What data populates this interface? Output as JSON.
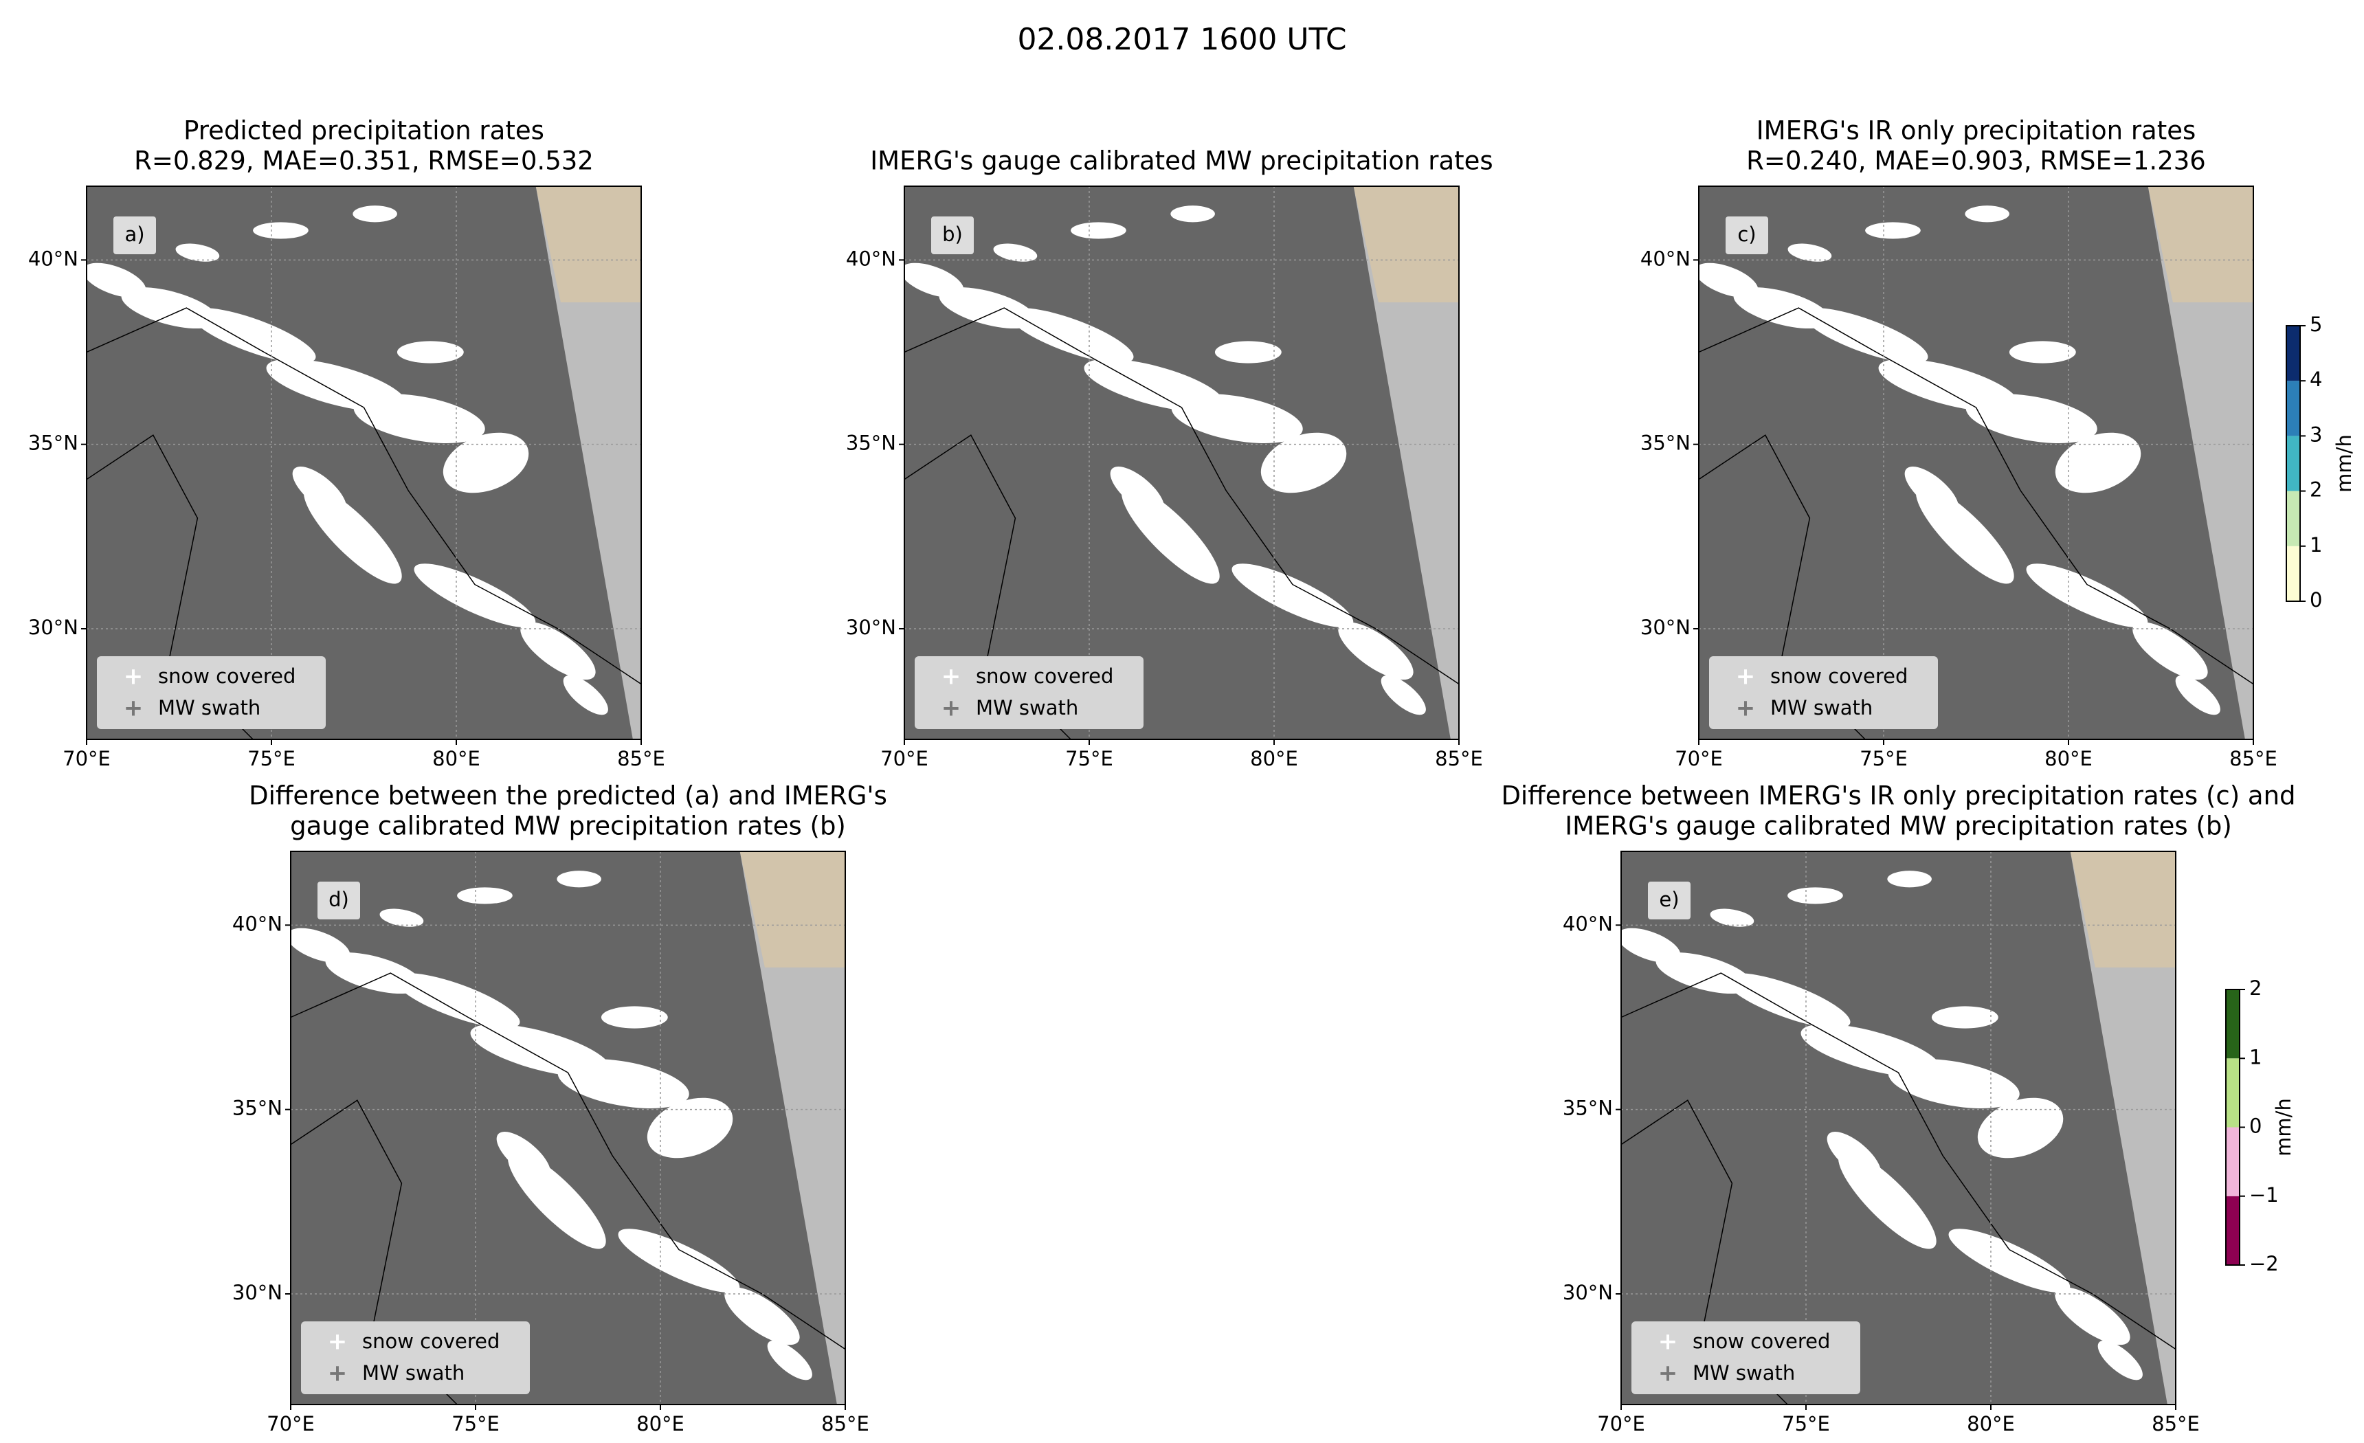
{
  "title": "02.08.2017 1600 UTC",
  "panels": [
    {
      "title": [
        "Predicted precipitation rates",
        "R=0.829, MAE=0.351, RMSE=0.532"
      ],
      "label": "a)"
    },
    {
      "title": [
        "IMERG's gauge calibrated MW precipitation rates"
      ],
      "label": "b)"
    },
    {
      "title": [
        "IMERG's IR only precipitation rates",
        "R=0.240, MAE=0.903, RMSE=1.236"
      ],
      "label": "c)"
    },
    {
      "title": [
        "Difference between the predicted (a) and IMERG's",
        "gauge calibrated MW precipitation rates (b)"
      ],
      "label": "d)"
    },
    {
      "title": [
        "Difference between IMERG's IR only precipitation rates (c) and",
        "IMERG's gauge calibrated MW precipitation rates (b)"
      ],
      "label": "e)"
    }
  ],
  "xlim": [
    70,
    85
  ],
  "ylim": [
    27,
    42
  ],
  "xticks": [
    {
      "value": 70,
      "label": "70°E"
    },
    {
      "value": 75,
      "label": "75°E"
    },
    {
      "value": 80,
      "label": "80°E"
    },
    {
      "value": 85,
      "label": "85°E"
    }
  ],
  "yticks": [
    {
      "value": 30,
      "label": "30°N"
    },
    {
      "value": 35,
      "label": "35°N"
    },
    {
      "value": 40,
      "label": "40°N"
    }
  ],
  "legend": [
    "snow covered",
    "MW swath"
  ],
  "colorbars": [
    {
      "label": "mm/h",
      "ticks": [
        0,
        1,
        2,
        3,
        4,
        5
      ],
      "colors": [
        "#fdfdd4",
        "#c7e9b4",
        "#41b6c4",
        "#2c7fb8",
        "#0c2c6e"
      ]
    },
    {
      "label": "mm/h",
      "ticks": [
        {
          "value": -2,
          "label": "−2"
        },
        {
          "value": -1,
          "label": "−1"
        },
        0,
        1,
        2
      ],
      "colors": [
        "#8e0152",
        "#f1b6da",
        "#b8e186",
        "#276419"
      ]
    }
  ]
}
